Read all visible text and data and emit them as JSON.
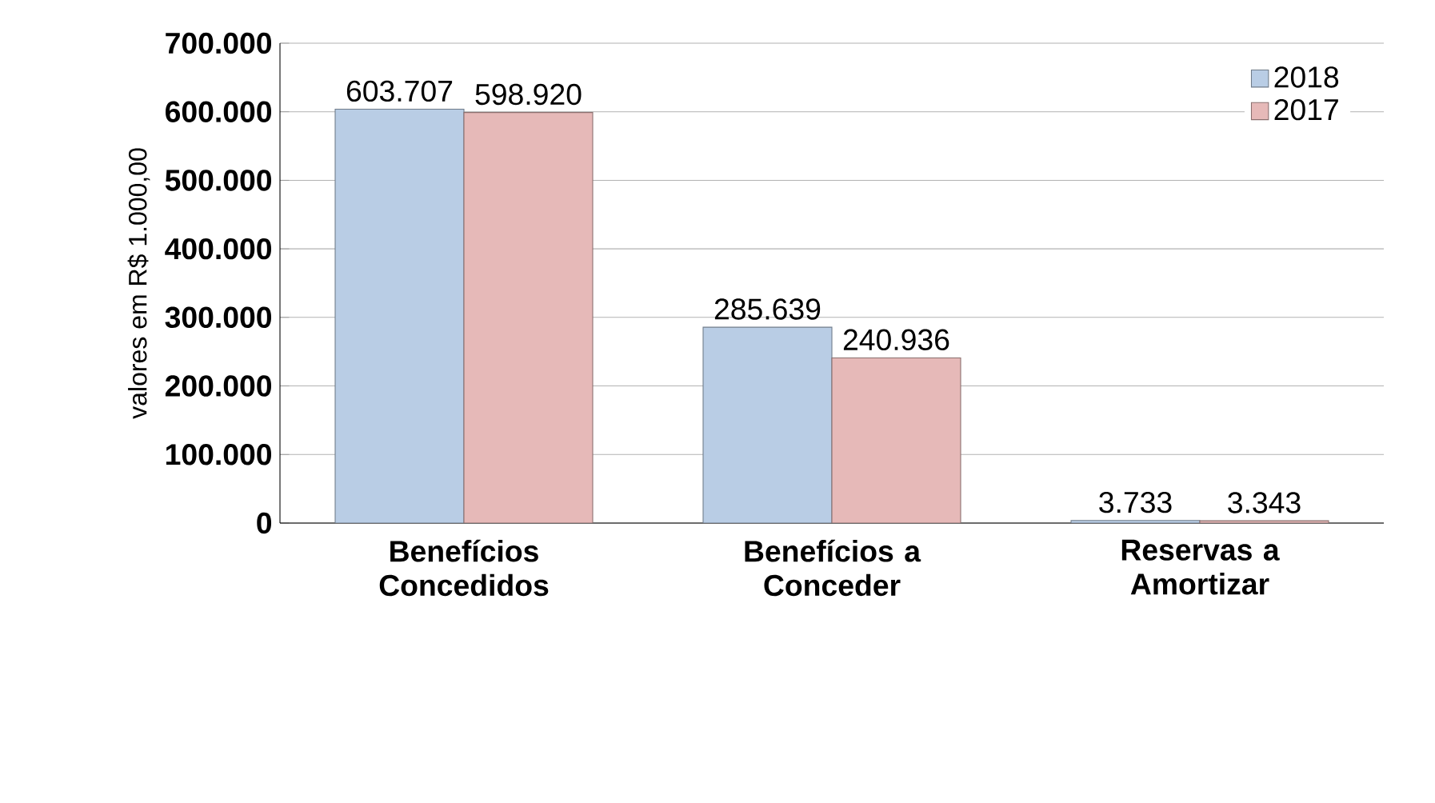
{
  "chart_data": {
    "type": "bar",
    "ylabel": "valores  em R$ 1.000,00",
    "categories": [
      "Benefícios Concedidos",
      "Benefícios a Conceder",
      "Reservas a Amortizar"
    ],
    "series": [
      {
        "name": "2018",
        "color": "#b9cde5",
        "values": [
          603707,
          285639,
          3733
        ],
        "value_labels": [
          "603.707",
          "285.639",
          "3.733"
        ]
      },
      {
        "name": "2017",
        "color": "#e6b9b8",
        "values": [
          598920,
          240936,
          3343
        ],
        "value_labels": [
          "598.920",
          "240.936",
          "3.343"
        ]
      }
    ],
    "ylim": [
      0,
      700000
    ],
    "yticks": [
      {
        "value": 0,
        "label": "0"
      },
      {
        "value": 100000,
        "label": "100.000"
      },
      {
        "value": 200000,
        "label": "200.000"
      },
      {
        "value": 300000,
        "label": "300.000"
      },
      {
        "value": 400000,
        "label": "400.000"
      },
      {
        "value": 500000,
        "label": "500.000"
      },
      {
        "value": 600000,
        "label": "600.000"
      },
      {
        "value": 700000,
        "label": "700.000"
      }
    ],
    "grid": "y",
    "legend": "top right"
  }
}
